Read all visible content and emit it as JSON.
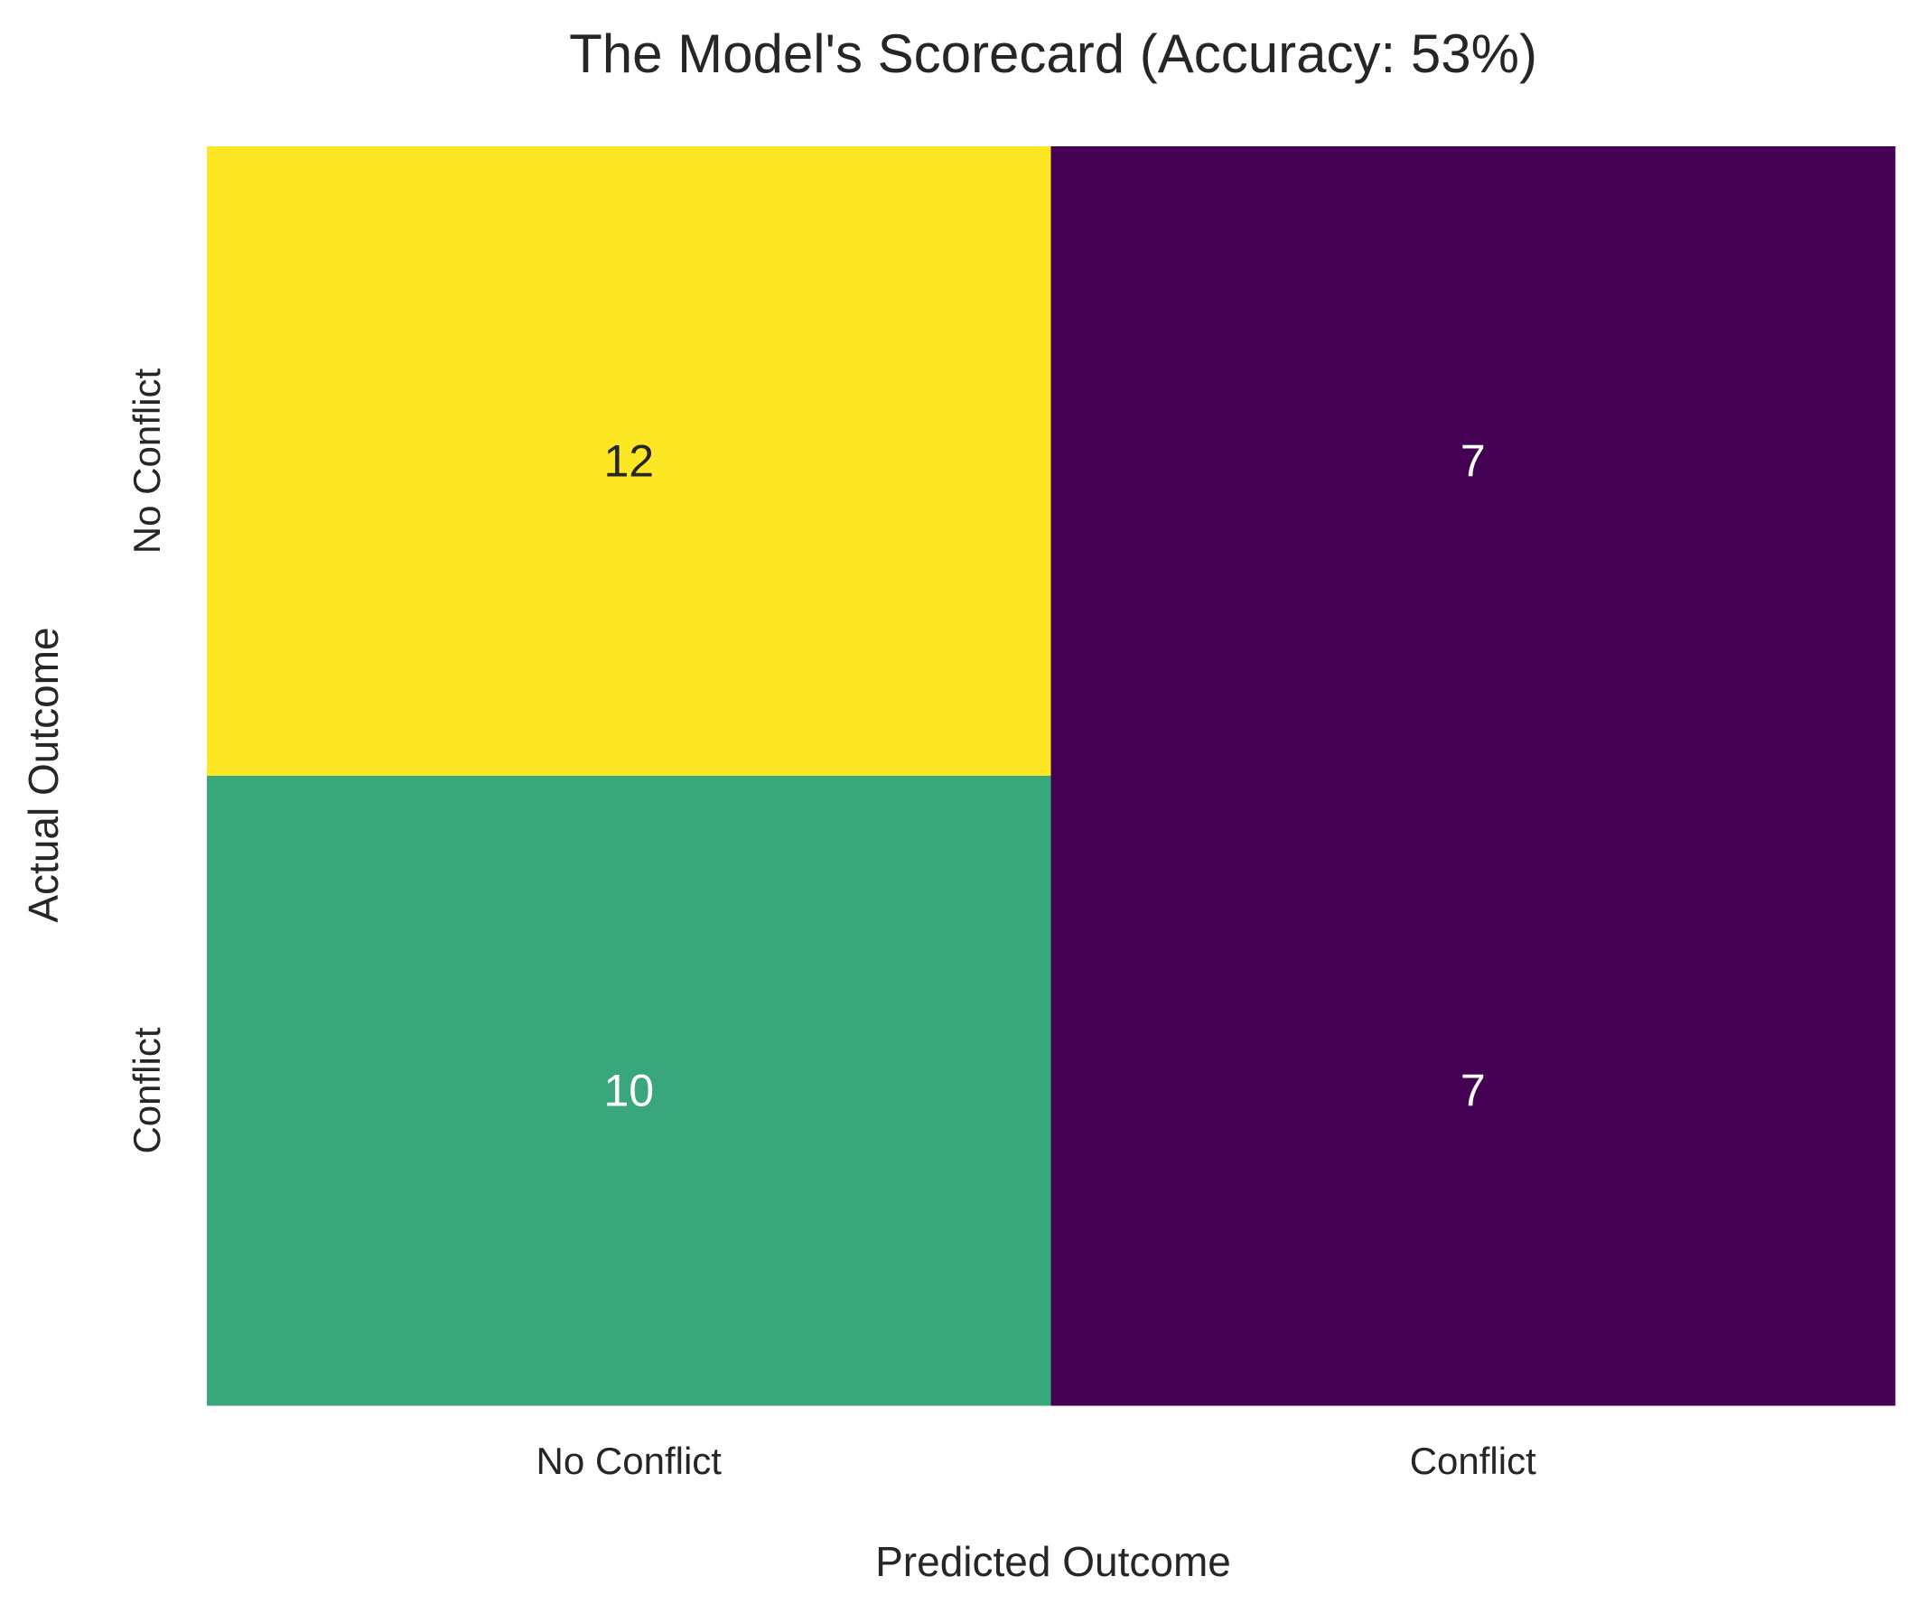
{
  "chart_data": {
    "type": "heatmap",
    "title": "The Model's Scorecard (Accuracy: 53%)",
    "xlabel": "Predicted Outcome",
    "ylabel": "Actual Outcome",
    "x_categories": [
      "No Conflict",
      "Conflict"
    ],
    "y_categories": [
      "No Conflict",
      "Conflict"
    ],
    "values": [
      [
        12,
        7
      ],
      [
        10,
        7
      ]
    ],
    "colorbar": false,
    "grid": false,
    "colormap": "viridis"
  },
  "colors": {
    "low": "#440154",
    "mid": "#21918c",
    "high": "#fde725",
    "annotation_dark": "#262626",
    "annotation_light": "#ffffff"
  }
}
